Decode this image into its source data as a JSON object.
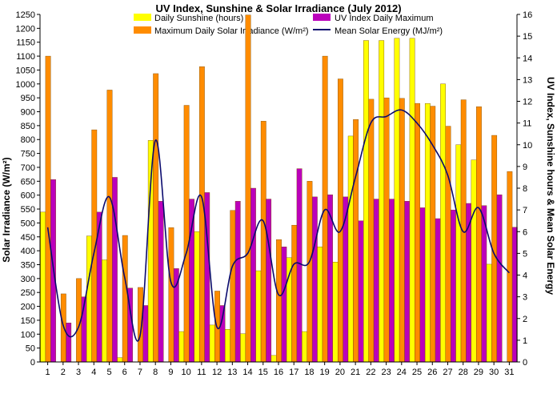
{
  "chart_data": {
    "type": "bar",
    "title": "UV Index, Sunshine & Solar Irradiance (July 2012)",
    "ylabel": "Solar Irradiance (W/m²)",
    "y2label": "UV Index, Sunshine hours & Mean Solar Energy",
    "ylim": [
      0,
      1250
    ],
    "y2lim": [
      0,
      16
    ],
    "yticks": [
      "0",
      "50",
      "100",
      "150",
      "200",
      "250",
      "300",
      "350",
      "400",
      "450",
      "500",
      "550",
      "600",
      "650",
      "700",
      "750",
      "800",
      "850",
      "900",
      "950",
      "1000",
      "1050",
      "1100",
      "1150",
      "1200",
      "1250"
    ],
    "y2ticks": [
      "0",
      "1",
      "2",
      "3",
      "4",
      "5",
      "6",
      "7",
      "8",
      "9",
      "10",
      "11",
      "12",
      "13",
      "14",
      "15",
      "16"
    ],
    "categories": [
      "1",
      "2",
      "3",
      "4",
      "5",
      "6",
      "7",
      "8",
      "9",
      "10",
      "11",
      "12",
      "13",
      "14",
      "15",
      "16",
      "17",
      "18",
      "19",
      "20",
      "21",
      "22",
      "23",
      "24",
      "25",
      "26",
      "27",
      "28",
      "29",
      "30",
      "31"
    ],
    "grid": false,
    "legend": "top",
    "colors": {
      "sunshine": "#ffff00",
      "irradiance": "#ff8c00",
      "uv": "#bb00bb",
      "energy": "#0a0a6e"
    },
    "series": [
      {
        "name": "Daily Sunshine (hours)",
        "axis": "right",
        "kind": "bar",
        "values": [
          6.9,
          0.0,
          0.0,
          5.8,
          4.7,
          0.2,
          0.0,
          10.2,
          0.0,
          1.4,
          6.0,
          1.7,
          1.5,
          1.3,
          4.2,
          0.3,
          4.8,
          1.4,
          5.3,
          4.6,
          10.4,
          14.8,
          14.8,
          14.9,
          14.9,
          11.9,
          12.8,
          10.0,
          9.3,
          4.5,
          0.0
        ]
      },
      {
        "name": "Maximum Daily Solar Irradiance (W/m²)",
        "axis": "left",
        "kind": "bar",
        "values": [
          1100,
          245,
          300,
          835,
          978,
          455,
          268,
          1037,
          483,
          923,
          1062,
          255,
          545,
          1248,
          866,
          440,
          492,
          650,
          1100,
          1018,
          872,
          945,
          950,
          948,
          930,
          920,
          848,
          943,
          918,
          815,
          685
        ]
      },
      {
        "name": "UV Index Daily Maximum",
        "axis": "right",
        "kind": "bar",
        "values": [
          8.4,
          1.8,
          3.0,
          6.9,
          8.5,
          3.4,
          2.6,
          7.4,
          4.3,
          7.5,
          7.8,
          2.6,
          7.4,
          8.0,
          7.5,
          5.3,
          8.9,
          7.6,
          7.7,
          7.6,
          6.5,
          7.5,
          7.5,
          7.4,
          7.1,
          6.6,
          7.0,
          7.3,
          7.2,
          7.7,
          6.2
        ]
      },
      {
        "name": "Mean Solar Energy (MJ/m²)",
        "axis": "right",
        "kind": "line",
        "values": [
          6.2,
          1.7,
          1.6,
          5.0,
          7.6,
          3.9,
          1.2,
          10.2,
          3.7,
          5.0,
          7.6,
          1.6,
          4.4,
          5.0,
          6.5,
          3.1,
          4.5,
          4.6,
          7.0,
          6.0,
          8.5,
          11.0,
          11.3,
          11.6,
          11.0,
          10.0,
          8.6,
          6.0,
          7.1,
          5.0,
          4.1
        ]
      }
    ]
  }
}
